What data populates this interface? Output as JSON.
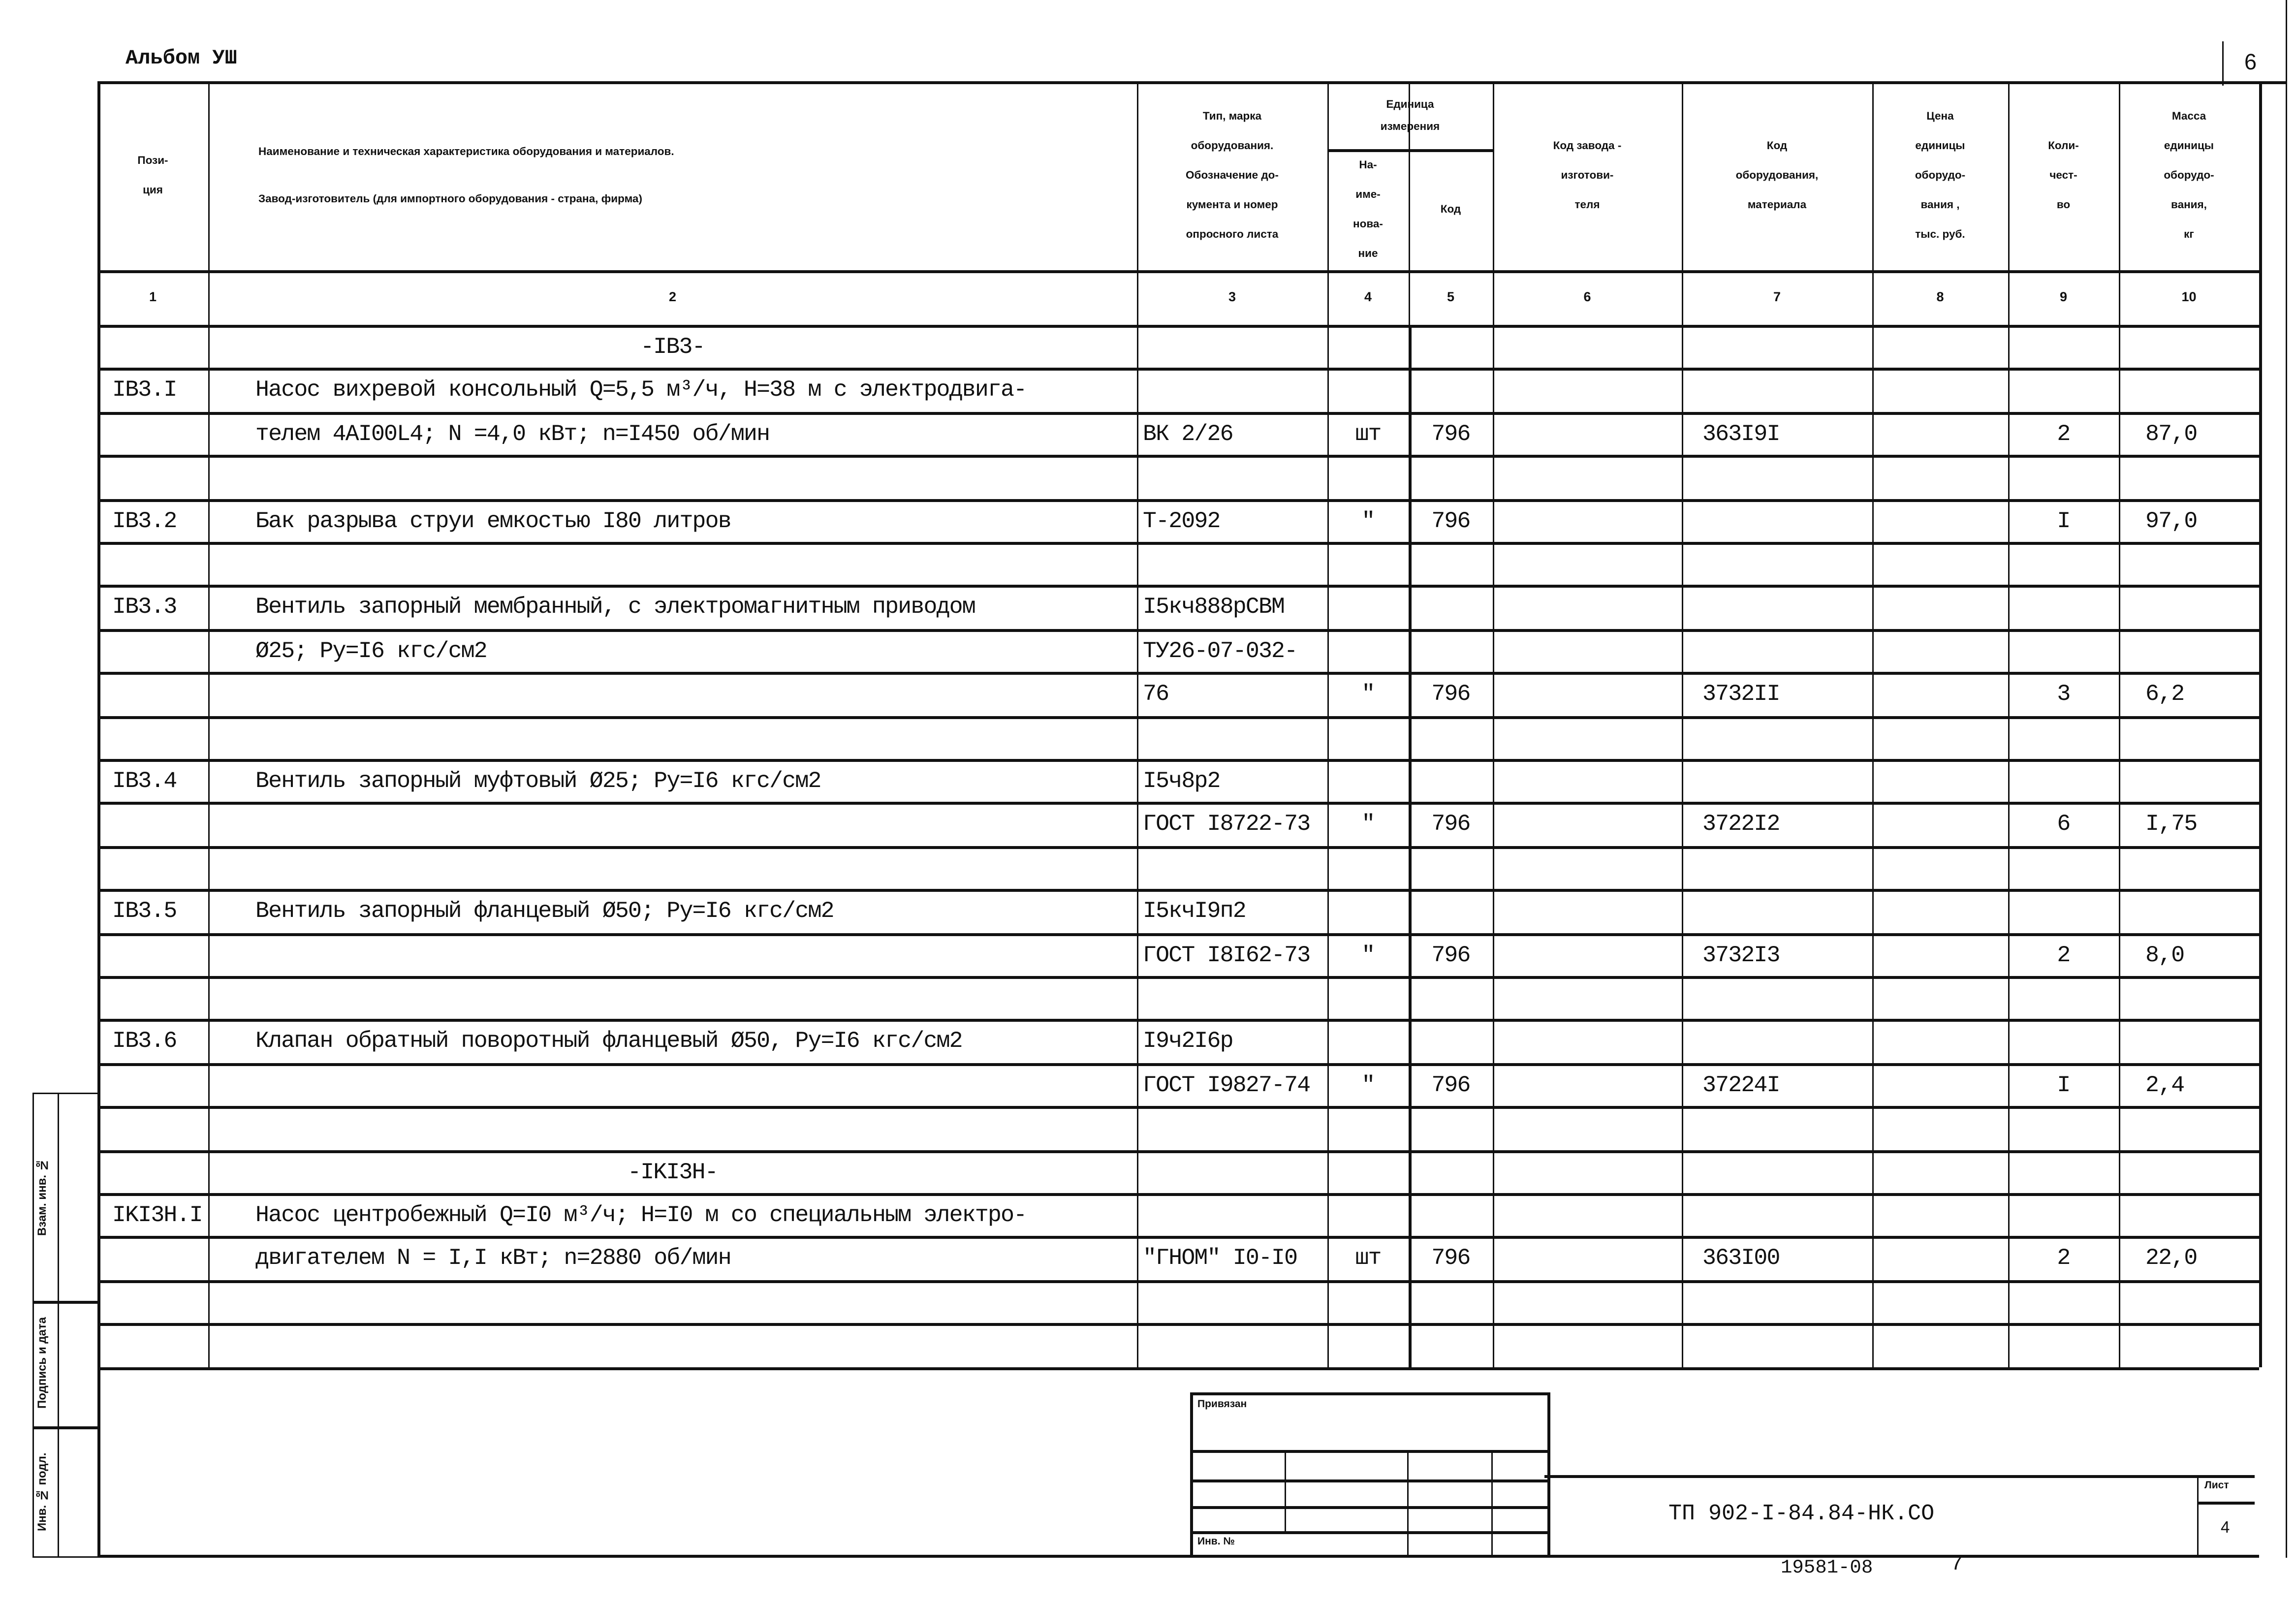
{
  "album": "Альбом УШ",
  "page_number": "6",
  "headers": [
    [
      "Пози-",
      "ция"
    ],
    [
      "Наименование и техническая характеристика  оборудования и материалов.",
      "Завод-изготовитель  (для импортного оборудования -  страна, фирма)"
    ],
    [
      "Тип,     марка",
      "оборудования.",
      "Обозначение  до-",
      "кумента  и  номер",
      "опросного  листа"
    ],
    [
      "На-",
      "име-",
      "нова-",
      "ние"
    ],
    [
      "Код"
    ],
    [
      "Код  завода -",
      "изготови-",
      "теля"
    ],
    [
      "Код",
      "оборудования,",
      "материала"
    ],
    [
      "Цена",
      "единицы",
      "оборудо-",
      "вания ,",
      "тыс. руб."
    ],
    [
      "Коли-",
      "чест-",
      "во"
    ],
    [
      "Масса",
      "единицы",
      "оборудо-",
      "вания,",
      "кг"
    ]
  ],
  "unit_group_header": [
    "Единица",
    "измерения"
  ],
  "column_numbers": [
    "1",
    "2",
    "3",
    "4",
    "5",
    "6",
    "7",
    "8",
    "9",
    "10"
  ],
  "rows": [
    [
      "",
      "-IB3-",
      "",
      "",
      "",
      "",
      "",
      "",
      "",
      ""
    ],
    [
      "IB3.I",
      "Насос вихревой консольный Q=5,5 м³/ч, H=38 м с электродвига-",
      "",
      "",
      "",
      "",
      "",
      "",
      "",
      ""
    ],
    [
      "",
      "телем 4AI00L4;  N =4,0 кВт; n=I450 об/мин",
      "ВК 2/26",
      "шт",
      "796",
      "",
      "363I9I",
      "",
      "2",
      "87,0"
    ],
    [
      "",
      "",
      "",
      "",
      "",
      "",
      "",
      "",
      "",
      ""
    ],
    [
      "IB3.2",
      "Бак разрыва струи емкостью I80 литров",
      "Т-2092",
      "\"",
      "796",
      "",
      "",
      "",
      "I",
      "97,0"
    ],
    [
      "",
      "",
      "",
      "",
      "",
      "",
      "",
      "",
      "",
      ""
    ],
    [
      "IB3.3",
      "Вентиль запорный мембранный, с электромагнитным приводом",
      "I5кч888рСВМ",
      "",
      "",
      "",
      "",
      "",
      "",
      ""
    ],
    [
      "",
      "Ø25; Ру=I6 кгс/см2",
      "ТУ26-07-032-",
      "",
      "",
      "",
      "",
      "",
      "",
      ""
    ],
    [
      "",
      "",
      "76",
      "\"",
      "796",
      "",
      "3732II",
      "",
      "3",
      "6,2"
    ],
    [
      "",
      "",
      "",
      "",
      "",
      "",
      "",
      "",
      "",
      ""
    ],
    [
      "IB3.4",
      "Вентиль запорный муфтовый Ø25; Ру=I6 кгс/см2",
      "I5ч8р2",
      "",
      "",
      "",
      "",
      "",
      "",
      ""
    ],
    [
      "",
      "",
      "ГОСТ I8722-73",
      "\"",
      "796",
      "",
      "3722I2",
      "",
      "6",
      "I,75"
    ],
    [
      "",
      "",
      "",
      "",
      "",
      "",
      "",
      "",
      "",
      ""
    ],
    [
      "IB3.5",
      "Вентиль запорный фланцевый Ø50; Ру=I6 кгс/см2",
      "I5кчI9п2",
      "",
      "",
      "",
      "",
      "",
      "",
      ""
    ],
    [
      "",
      "",
      "ГОСТ I8I62-73",
      "\"",
      "796",
      "",
      "3732I3",
      "",
      "2",
      "8,0"
    ],
    [
      "",
      "",
      "",
      "",
      "",
      "",
      "",
      "",
      "",
      ""
    ],
    [
      "IB3.6",
      "Клапан обратный поворотный фланцевый Ø50, Ру=I6 кгс/см2",
      "I9ч2I6р",
      "",
      "",
      "",
      "",
      "",
      "",
      ""
    ],
    [
      "",
      "",
      "ГОСТ I9827-74",
      "\"",
      "796",
      "",
      "37224I",
      "",
      "I",
      "2,4"
    ],
    [
      "",
      "",
      "",
      "",
      "",
      "",
      "",
      "",
      "",
      ""
    ],
    [
      "",
      "-IKI3H-",
      "",
      "",
      "",
      "",
      "",
      "",
      "",
      ""
    ],
    [
      "IKI3H.I",
      "Насос центробежный Q=I0 м³/ч; H=I0 м со специальным электро-",
      "",
      "",
      "",
      "",
      "",
      "",
      "",
      ""
    ],
    [
      "",
      "двигателем  N = I,I кВт; n=2880 об/мин",
      "\"ГНОМ\" I0-I0",
      "шт",
      "796",
      "",
      "363I00",
      "",
      "2",
      "22,0"
    ],
    [
      "",
      "",
      "",
      "",
      "",
      "",
      "",
      "",
      "",
      ""
    ],
    [
      "",
      "",
      "",
      "",
      "",
      "",
      "",
      "",
      "",
      ""
    ]
  ],
  "side_stamp": {
    "replaced_inv": "Взам. инв. №",
    "signature_date": "Подпись и дата",
    "inv_original": "Инв. № подл."
  },
  "title_block": {
    "tied_label": "Привязан",
    "inv_label": "Инв. №",
    "document_code": "ТП 902-I-84.84-НК.СО",
    "sheet_label": "Лист",
    "sheet_number": "4",
    "archive_number": "19581-08",
    "archive_sheet": "7"
  }
}
